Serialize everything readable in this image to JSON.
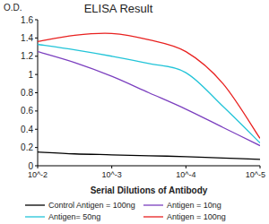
{
  "chart_data": {
    "type": "line",
    "title": "ELISA Result",
    "y_label": "O.D.",
    "x_label": "Serial Dilutions of Antibody",
    "log": "x",
    "grid": false,
    "legend": "bottom",
    "x": [
      0.01,
      0.00316,
      0.001,
      0.000316,
      0.0001,
      3.16e-05,
      1e-05
    ],
    "xlim": [
      0.01,
      1e-05
    ],
    "xticks": [
      {
        "value": 0.01,
        "label": "10^-2"
      },
      {
        "value": 0.001,
        "label": "10^-3"
      },
      {
        "value": 0.0001,
        "label": "10^-4"
      },
      {
        "value": 1e-05,
        "label": "10^-5"
      }
    ],
    "ylim": [
      0,
      1.6
    ],
    "yticks": [
      0,
      0.2,
      0.4,
      0.6,
      0.8,
      1,
      1.2,
      1.4,
      1.6
    ],
    "series": [
      {
        "name": "Control Antigen = 100ng",
        "color": "#000000",
        "values": [
          0.15,
          0.13,
          0.12,
          0.11,
          0.1,
          0.085,
          0.07
        ]
      },
      {
        "name": "Antigen = 10ng",
        "color": "#7b3fbf",
        "values": [
          1.25,
          1.13,
          0.98,
          0.8,
          0.62,
          0.42,
          0.22
        ]
      },
      {
        "name": "Antigen= 50ng",
        "color": "#22c4d8",
        "values": [
          1.33,
          1.27,
          1.2,
          1.12,
          1.02,
          0.65,
          0.25
        ]
      },
      {
        "name": "Antigen = 100ng",
        "color": "#e8201f",
        "values": [
          1.36,
          1.43,
          1.45,
          1.38,
          1.25,
          0.9,
          0.3
        ]
      }
    ]
  }
}
